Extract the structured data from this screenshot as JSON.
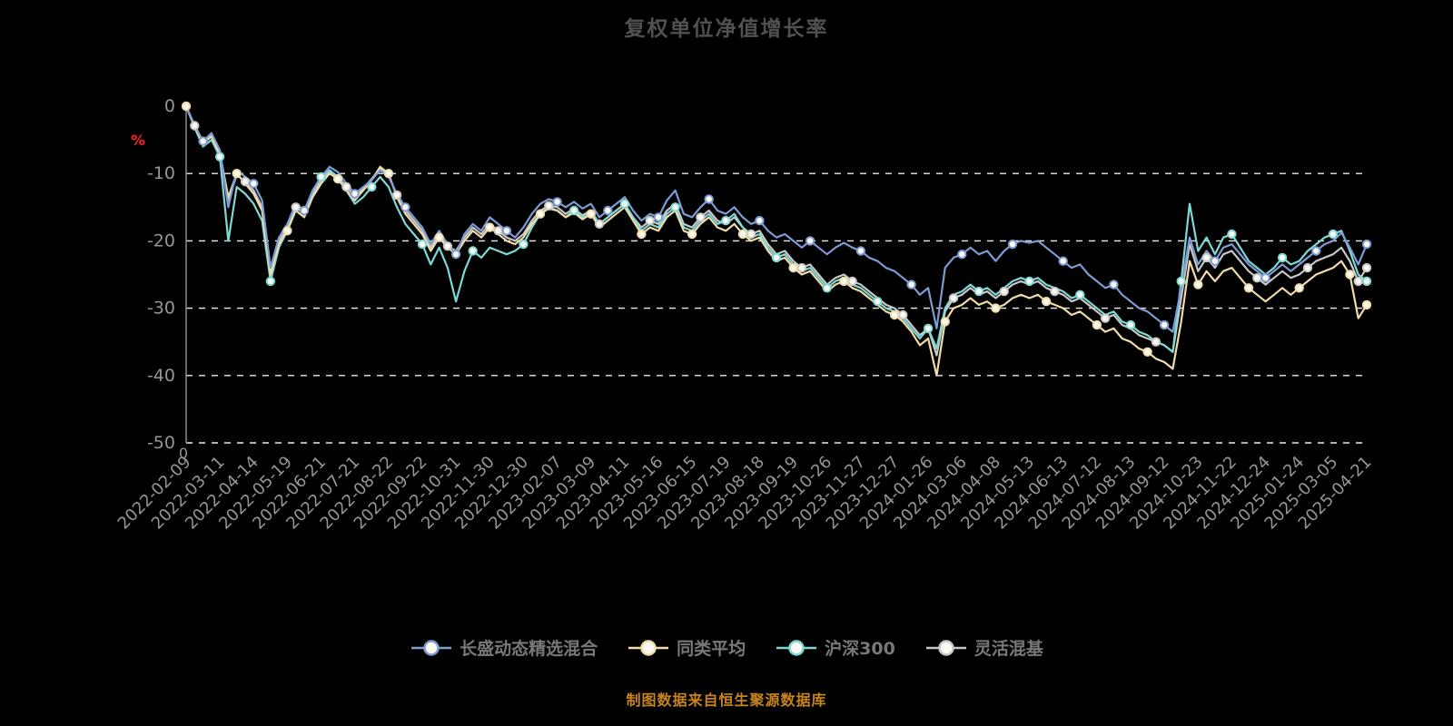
{
  "chart_data": {
    "type": "line",
    "title": "复权单位净值增长率",
    "ylabel": "%",
    "source_note": "制图数据来自恒生聚源数据库",
    "ylim": [
      -50,
      0
    ],
    "yticks": [
      0,
      -10,
      -20,
      -30,
      -40,
      -50
    ],
    "origin_label": "0",
    "legend_position": "bottom",
    "background": "#000000",
    "grid_color": "#EDEDED",
    "axis_color": "#8C8C8C",
    "tick_label_color": "#969696",
    "x_tick_labels": [
      "2022-02-09",
      "2022-03-11",
      "2022-04-14",
      "2022-05-19",
      "2022-06-21",
      "2022-07-21",
      "2022-08-22",
      "2022-09-22",
      "2022-10-31",
      "2022-11-30",
      "2022-12-30",
      "2023-02-07",
      "2023-03-09",
      "2023-04-11",
      "2023-05-16",
      "2023-06-15",
      "2023-07-19",
      "2023-08-18",
      "2023-09-19",
      "2023-10-26",
      "2023-11-27",
      "2023-12-27",
      "2024-01-26",
      "2024-03-06",
      "2024-04-08",
      "2024-05-13",
      "2024-06-13",
      "2024-07-12",
      "2024-08-13",
      "2024-09-12",
      "2024-10-23",
      "2024-11-22",
      "2024-12-24",
      "2025-01-24",
      "2025-03-05",
      "2025-04-21"
    ],
    "series": [
      {
        "name": "长盛动态精选混合",
        "color": "#7E9BD3",
        "values": [
          0,
          -2.8,
          -5.2,
          -4.0,
          -6.5,
          -15.0,
          -9.5,
          -10.5,
          -11.5,
          -14.0,
          -24.0,
          -19.5,
          -17.5,
          -14.5,
          -15.5,
          -12.5,
          -10.5,
          -9.0,
          -9.8,
          -11.5,
          -13.0,
          -12.0,
          -11.0,
          -9.5,
          -10.5,
          -13.0,
          -15.0,
          -16.5,
          -18.0,
          -20.5,
          -18.5,
          -20.5,
          -22.0,
          -19.0,
          -17.5,
          -18.5,
          -16.5,
          -17.5,
          -18.5,
          -19.5,
          -18.0,
          -16.0,
          -14.5,
          -13.8,
          -14.2,
          -15.0,
          -14.2,
          -15.2,
          -14.5,
          -16.5,
          -15.5,
          -14.5,
          -13.5,
          -15.5,
          -17.0,
          -16.0,
          -16.5,
          -14.0,
          -12.5,
          -16.0,
          -16.5,
          -15.0,
          -13.8,
          -15.5,
          -16.0,
          -15.0,
          -16.5,
          -17.5,
          -17.0,
          -18.5,
          -19.5,
          -19.0,
          -20.0,
          -21.0,
          -20.0,
          -21.0,
          -22.0,
          -21.0,
          -20.3,
          -21.0,
          -21.5,
          -22.5,
          -23.0,
          -24.0,
          -24.5,
          -25.5,
          -26.5,
          -28.0,
          -27.0,
          -33.0,
          -24.0,
          -22.5,
          -22.0,
          -21.0,
          -22.0,
          -21.5,
          -23.0,
          -21.5,
          -20.5,
          -20.0,
          -20.3,
          -20.0,
          -21.0,
          -22.0,
          -23.0,
          -24.0,
          -23.5,
          -25.0,
          -26.0,
          -27.0,
          -26.5,
          -28.0,
          -29.0,
          -30.0,
          -30.5,
          -31.5,
          -32.5,
          -33.5,
          -27.0,
          -19.5,
          -23.5,
          -21.5,
          -23.0,
          -21.0,
          -20.5,
          -22.0,
          -23.5,
          -24.5,
          -25.5,
          -24.5,
          -23.5,
          -24.5,
          -23.5,
          -22.5,
          -21.5,
          -20.5,
          -20.0,
          -18.8,
          -21.0,
          -23.5,
          -20.5
        ]
      },
      {
        "name": "同类平均",
        "color": "#F0DCA8",
        "values": [
          0,
          -3.0,
          -5.5,
          -4.5,
          -7.0,
          -13.5,
          -10.0,
          -11.5,
          -13.0,
          -15.5,
          -25.0,
          -20.5,
          -18.5,
          -15.5,
          -16.5,
          -13.5,
          -11.5,
          -10.0,
          -10.8,
          -12.5,
          -14.0,
          -12.5,
          -11.0,
          -9.0,
          -10.0,
          -13.5,
          -16.0,
          -17.5,
          -19.0,
          -21.5,
          -19.5,
          -21.0,
          -22.0,
          -20.0,
          -18.5,
          -19.5,
          -18.0,
          -19.0,
          -20.0,
          -20.5,
          -19.5,
          -17.5,
          -16.0,
          -15.2,
          -15.5,
          -16.5,
          -15.8,
          -16.8,
          -16.0,
          -18.0,
          -17.0,
          -16.0,
          -15.0,
          -17.0,
          -19.0,
          -18.0,
          -18.5,
          -16.5,
          -15.5,
          -18.5,
          -19.0,
          -17.5,
          -16.5,
          -18.0,
          -18.5,
          -17.5,
          -19.0,
          -20.0,
          -19.5,
          -21.5,
          -23.0,
          -22.5,
          -24.0,
          -25.0,
          -24.5,
          -26.0,
          -27.5,
          -26.5,
          -26.0,
          -27.0,
          -27.5,
          -28.5,
          -29.5,
          -30.5,
          -31.0,
          -32.0,
          -33.5,
          -35.5,
          -34.5,
          -40.0,
          -32.0,
          -30.0,
          -29.5,
          -28.5,
          -29.5,
          -29.0,
          -30.0,
          -29.5,
          -28.5,
          -28.0,
          -28.5,
          -28.0,
          -29.0,
          -29.5,
          -30.0,
          -31.0,
          -30.5,
          -31.5,
          -32.5,
          -33.5,
          -33.0,
          -34.5,
          -35.0,
          -36.0,
          -36.5,
          -37.5,
          -38.0,
          -39.0,
          -32.0,
          -23.0,
          -26.5,
          -24.5,
          -26.0,
          -24.5,
          -24.0,
          -25.5,
          -27.0,
          -28.0,
          -29.0,
          -28.0,
          -27.0,
          -28.0,
          -27.0,
          -26.0,
          -25.0,
          -24.5,
          -24.0,
          -23.0,
          -25.0,
          -31.5,
          -29.5
        ]
      },
      {
        "name": "沪深300",
        "color": "#7DD8D6",
        "values": [
          0,
          -3.2,
          -6.0,
          -5.0,
          -7.5,
          -20.0,
          -12.0,
          -13.0,
          -14.5,
          -17.0,
          -26.0,
          -21.0,
          -18.5,
          -15.0,
          -16.0,
          -12.5,
          -10.5,
          -9.5,
          -10.5,
          -12.5,
          -14.5,
          -13.5,
          -12.0,
          -10.5,
          -12.0,
          -15.0,
          -17.5,
          -19.0,
          -20.5,
          -23.5,
          -21.0,
          -24.0,
          -29.0,
          -24.5,
          -21.5,
          -22.5,
          -21.0,
          -21.5,
          -22.0,
          -21.5,
          -20.5,
          -18.0,
          -16.0,
          -15.0,
          -15.5,
          -16.5,
          -15.5,
          -16.5,
          -15.5,
          -17.5,
          -16.5,
          -15.5,
          -14.5,
          -16.5,
          -18.5,
          -17.5,
          -18.0,
          -16.0,
          -15.0,
          -18.0,
          -18.5,
          -17.0,
          -16.0,
          -17.5,
          -17.0,
          -16.0,
          -18.0,
          -19.5,
          -19.0,
          -21.0,
          -22.5,
          -22.0,
          -23.5,
          -24.5,
          -24.0,
          -25.5,
          -27.0,
          -26.0,
          -25.5,
          -26.5,
          -27.0,
          -28.0,
          -29.0,
          -30.0,
          -30.5,
          -31.5,
          -33.0,
          -34.5,
          -33.0,
          -36.0,
          -30.0,
          -28.0,
          -27.5,
          -26.5,
          -27.5,
          -27.0,
          -28.0,
          -27.0,
          -26.0,
          -25.5,
          -26.0,
          -25.5,
          -26.5,
          -27.0,
          -27.5,
          -28.5,
          -28.0,
          -29.0,
          -30.0,
          -31.0,
          -30.5,
          -32.0,
          -32.5,
          -33.5,
          -34.0,
          -35.0,
          -35.5,
          -36.5,
          -26.0,
          -14.5,
          -21.5,
          -19.5,
          -22.0,
          -19.5,
          -19.0,
          -21.0,
          -23.0,
          -24.0,
          -25.0,
          -24.0,
          -22.5,
          -23.5,
          -23.0,
          -21.5,
          -20.5,
          -19.5,
          -19.0,
          -18.5,
          -21.5,
          -25.0,
          -26.0
        ]
      },
      {
        "name": "灵活混基",
        "color": "#C8C8C8",
        "values": [
          0,
          -2.9,
          -5.3,
          -4.3,
          -6.8,
          -14.0,
          -10.2,
          -11.2,
          -12.5,
          -15.0,
          -24.5,
          -20.0,
          -18.0,
          -15.0,
          -16.0,
          -13.0,
          -11.0,
          -9.8,
          -10.5,
          -12.0,
          -13.5,
          -12.2,
          -10.8,
          -9.3,
          -10.3,
          -13.2,
          -15.5,
          -17.0,
          -18.5,
          -21.0,
          -19.0,
          -20.8,
          -21.5,
          -19.5,
          -18.0,
          -19.0,
          -17.5,
          -18.5,
          -19.5,
          -20.0,
          -19.0,
          -17.0,
          -15.5,
          -14.8,
          -15.0,
          -16.0,
          -15.2,
          -16.2,
          -15.5,
          -17.5,
          -16.5,
          -15.5,
          -14.5,
          -16.5,
          -18.0,
          -17.0,
          -17.5,
          -15.5,
          -14.5,
          -17.5,
          -18.0,
          -16.5,
          -15.5,
          -17.0,
          -17.5,
          -16.5,
          -18.0,
          -19.0,
          -18.5,
          -20.5,
          -22.0,
          -21.5,
          -23.0,
          -24.0,
          -23.5,
          -25.0,
          -26.5,
          -25.5,
          -25.0,
          -26.0,
          -26.5,
          -27.5,
          -28.5,
          -29.5,
          -30.0,
          -31.0,
          -32.5,
          -34.0,
          -33.0,
          -37.0,
          -30.5,
          -28.5,
          -28.0,
          -27.0,
          -28.0,
          -27.5,
          -28.5,
          -27.5,
          -26.5,
          -26.0,
          -26.5,
          -26.0,
          -27.0,
          -27.5,
          -28.0,
          -29.0,
          -28.5,
          -29.5,
          -30.5,
          -31.5,
          -31.0,
          -32.5,
          -33.0,
          -34.0,
          -34.5,
          -35.0,
          -35.5,
          -36.5,
          -28.5,
          -20.5,
          -24.5,
          -22.5,
          -24.0,
          -22.0,
          -21.5,
          -23.0,
          -24.5,
          -25.5,
          -26.5,
          -25.5,
          -24.5,
          -25.5,
          -25.0,
          -24.0,
          -23.0,
          -22.5,
          -22.0,
          -21.0,
          -23.0,
          -26.0,
          -24.0
        ]
      }
    ]
  }
}
